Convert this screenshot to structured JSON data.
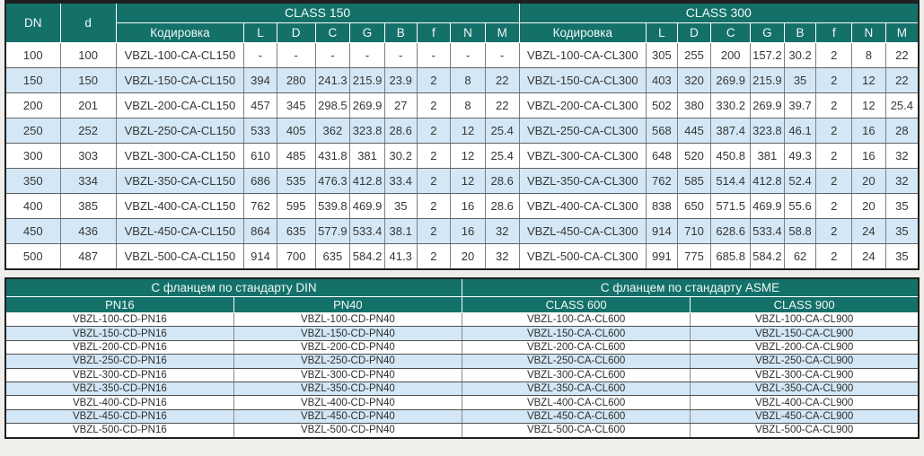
{
  "colors": {
    "header_bg": "#14716a",
    "row_alt_bg": "#d3e7f6",
    "row_bg": "#ffffff",
    "outer_border": "#1f1f1f",
    "grid_border": "#7f7f7f",
    "header_text": "#f2f8f7",
    "cell_text": "#363636"
  },
  "top_table": {
    "col_dn": "DN",
    "col_d": "d",
    "groups": [
      {
        "label": "CLASS 150"
      },
      {
        "label": "CLASS 300"
      }
    ],
    "sub_headers": [
      "Кодировка",
      "L",
      "D",
      "C",
      "G",
      "B",
      "f",
      "N",
      "M"
    ],
    "rows": [
      {
        "dn": "100",
        "d": "100",
        "c150": [
          "VBZL-100-CA-CL150",
          "-",
          "-",
          "-",
          "-",
          "-",
          "-",
          "-",
          "-"
        ],
        "c300": [
          "VBZL-100-CA-CL300",
          "305",
          "255",
          "200",
          "157.2",
          "30.2",
          "2",
          "8",
          "22"
        ]
      },
      {
        "dn": "150",
        "d": "150",
        "c150": [
          "VBZL-150-CA-CL150",
          "394",
          "280",
          "241.3",
          "215.9",
          "23.9",
          "2",
          "8",
          "22"
        ],
        "c300": [
          "VBZL-150-CA-CL300",
          "403",
          "320",
          "269.9",
          "215.9",
          "35",
          "2",
          "12",
          "22"
        ]
      },
      {
        "dn": "200",
        "d": "201",
        "c150": [
          "VBZL-200-CA-CL150",
          "457",
          "345",
          "298.5",
          "269.9",
          "27",
          "2",
          "8",
          "22"
        ],
        "c300": [
          "VBZL-200-CA-CL300",
          "502",
          "380",
          "330.2",
          "269.9",
          "39.7",
          "2",
          "12",
          "25.4"
        ]
      },
      {
        "dn": "250",
        "d": "252",
        "c150": [
          "VBZL-250-CA-CL150",
          "533",
          "405",
          "362",
          "323.8",
          "28.6",
          "2",
          "12",
          "25.4"
        ],
        "c300": [
          "VBZL-250-CA-CL300",
          "568",
          "445",
          "387.4",
          "323.8",
          "46.1",
          "2",
          "16",
          "28"
        ]
      },
      {
        "dn": "300",
        "d": "303",
        "c150": [
          "VBZL-300-CA-CL150",
          "610",
          "485",
          "431.8",
          "381",
          "30.2",
          "2",
          "12",
          "25.4"
        ],
        "c300": [
          "VBZL-300-CA-CL300",
          "648",
          "520",
          "450.8",
          "381",
          "49.3",
          "2",
          "16",
          "32"
        ]
      },
      {
        "dn": "350",
        "d": "334",
        "c150": [
          "VBZL-350-CA-CL150",
          "686",
          "535",
          "476.3",
          "412.8",
          "33.4",
          "2",
          "12",
          "28.6"
        ],
        "c300": [
          "VBZL-350-CA-CL300",
          "762",
          "585",
          "514.4",
          "412.8",
          "52.4",
          "2",
          "20",
          "32"
        ]
      },
      {
        "dn": "400",
        "d": "385",
        "c150": [
          "VBZL-400-CA-CL150",
          "762",
          "595",
          "539.8",
          "469.9",
          "35",
          "2",
          "16",
          "28.6"
        ],
        "c300": [
          "VBZL-400-CA-CL300",
          "838",
          "650",
          "571.5",
          "469.9",
          "55.6",
          "2",
          "20",
          "35"
        ]
      },
      {
        "dn": "450",
        "d": "436",
        "c150": [
          "VBZL-450-CA-CL150",
          "864",
          "635",
          "577.9",
          "533.4",
          "38.1",
          "2",
          "16",
          "32"
        ],
        "c300": [
          "VBZL-450-CA-CL300",
          "914",
          "710",
          "628.6",
          "533.4",
          "58.8",
          "2",
          "24",
          "35"
        ]
      },
      {
        "dn": "500",
        "d": "487",
        "c150": [
          "VBZL-500-CA-CL150",
          "914",
          "700",
          "635",
          "584.2",
          "41.3",
          "2",
          "20",
          "32"
        ],
        "c300": [
          "VBZL-500-CA-CL300",
          "991",
          "775",
          "685.8",
          "584.2",
          "62",
          "2",
          "24",
          "35"
        ]
      }
    ]
  },
  "bottom_table": {
    "groups": [
      {
        "label": "С фланцем по стандарту DIN",
        "columns": [
          "PN16",
          "PN40"
        ]
      },
      {
        "label": "С фланцем по стандарту ASME",
        "columns": [
          "CLASS 600",
          "CLASS 900"
        ]
      }
    ],
    "rows": [
      [
        "VBZL-100-CD-PN16",
        "VBZL-100-CD-PN40",
        "VBZL-100-CA-CL600",
        "VBZL-100-CA-CL900"
      ],
      [
        "VBZL-150-CD-PN16",
        "VBZL-150-CD-PN40",
        "VBZL-150-CA-CL600",
        "VBZL-150-CA-CL900"
      ],
      [
        "VBZL-200-CD-PN16",
        "VBZL-200-CD-PN40",
        "VBZL-200-CA-CL600",
        "VBZL-200-CA-CL900"
      ],
      [
        "VBZL-250-CD-PN16",
        "VBZL-250-CD-PN40",
        "VBZL-250-CA-CL600",
        "VBZL-250-CA-CL900"
      ],
      [
        "VBZL-300-CD-PN16",
        "VBZL-300-CD-PN40",
        "VBZL-300-CA-CL600",
        "VBZL-300-CA-CL900"
      ],
      [
        "VBZL-350-CD-PN16",
        "VBZL-350-CD-PN40",
        "VBZL-350-CA-CL600",
        "VBZL-350-CA-CL900"
      ],
      [
        "VBZL-400-CD-PN16",
        "VBZL-400-CD-PN40",
        "VBZL-400-CA-CL600",
        "VBZL-400-CA-CL900"
      ],
      [
        "VBZL-450-CD-PN16",
        "VBZL-450-CD-PN40",
        "VBZL-450-CA-CL600",
        "VBZL-450-CA-CL900"
      ],
      [
        "VBZL-500-CD-PN16",
        "VBZL-500-CD-PN40",
        "VBZL-500-CA-CL600",
        "VBZL-500-CA-CL900"
      ]
    ]
  }
}
